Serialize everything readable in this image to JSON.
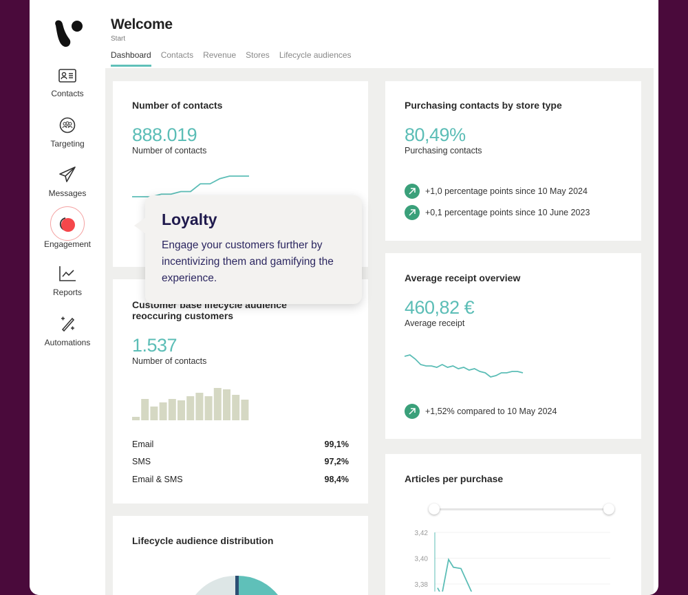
{
  "header": {
    "title": "Welcome",
    "subtitle": "Start",
    "tabs": [
      "Dashboard",
      "Contacts",
      "Revenue",
      "Stores",
      "Lifecycle audiences"
    ]
  },
  "sidebar": {
    "items": [
      {
        "label": "Contacts",
        "icon": "contact-card-icon"
      },
      {
        "label": "Targeting",
        "icon": "group-icon"
      },
      {
        "label": "Messages",
        "icon": "paper-plane-icon"
      },
      {
        "label": "Engagement",
        "icon": "loyalty-icon"
      },
      {
        "label": "Reports",
        "icon": "line-chart-icon"
      },
      {
        "label": "Automations",
        "icon": "magic-wand-icon"
      }
    ]
  },
  "tooltip": {
    "title": "Loyalty",
    "body": "Engage your customers further by incentivizing them and gamifying the experience."
  },
  "cards": {
    "contacts": {
      "title": "Number of contacts",
      "value": "888.019",
      "label": "Number of contacts",
      "spark": [
        1,
        1,
        1,
        2,
        2,
        3,
        3,
        6,
        6,
        8,
        9,
        9,
        9
      ]
    },
    "purchasing": {
      "title": "Purchasing contacts by store type",
      "value": "80,49%",
      "label": "Purchasing contacts",
      "deltas": [
        "+1,0 percentage points since 10 May 2024",
        "+0,1 percentage points since 10 June 2023"
      ]
    },
    "lifecycle": {
      "title": "Customer base lifecycle audience reoccuring customers",
      "value": "1.537",
      "label": "Number of contacts",
      "bars": [
        5,
        31,
        20,
        26,
        31,
        29,
        35,
        40,
        35,
        47,
        45,
        37,
        30
      ],
      "rows": [
        {
          "label": "Email",
          "value": "99,1%"
        },
        {
          "label": "SMS",
          "value": "97,2%"
        },
        {
          "label": "Email & SMS",
          "value": "98,4%"
        }
      ]
    },
    "receipt": {
      "title": "Average receipt overview",
      "value": "460,82 €",
      "label": "Average receipt",
      "spark": [
        9,
        9.5,
        8,
        6,
        5.5,
        5.5,
        5,
        6,
        5,
        5.5,
        4.5,
        5,
        4,
        4.5,
        3.5,
        3,
        1.5,
        2,
        3,
        3,
        3.5,
        3.5,
        3
      ],
      "delta": "+1,52% compared to 10 May 2024"
    },
    "distribution": {
      "title": "Lifecycle audience distribution"
    },
    "articles": {
      "title": "Articles per purchase",
      "yticks": [
        "3,42",
        "3,40",
        "3,38"
      ],
      "series": [
        3.377,
        3.371,
        3.399,
        3.393,
        3.392,
        3.372
      ]
    }
  },
  "colors": {
    "accent": "#5bbdb6",
    "positive": "#3aa07a",
    "bars": "#d5d8c3",
    "background": "#4a0a3b"
  }
}
